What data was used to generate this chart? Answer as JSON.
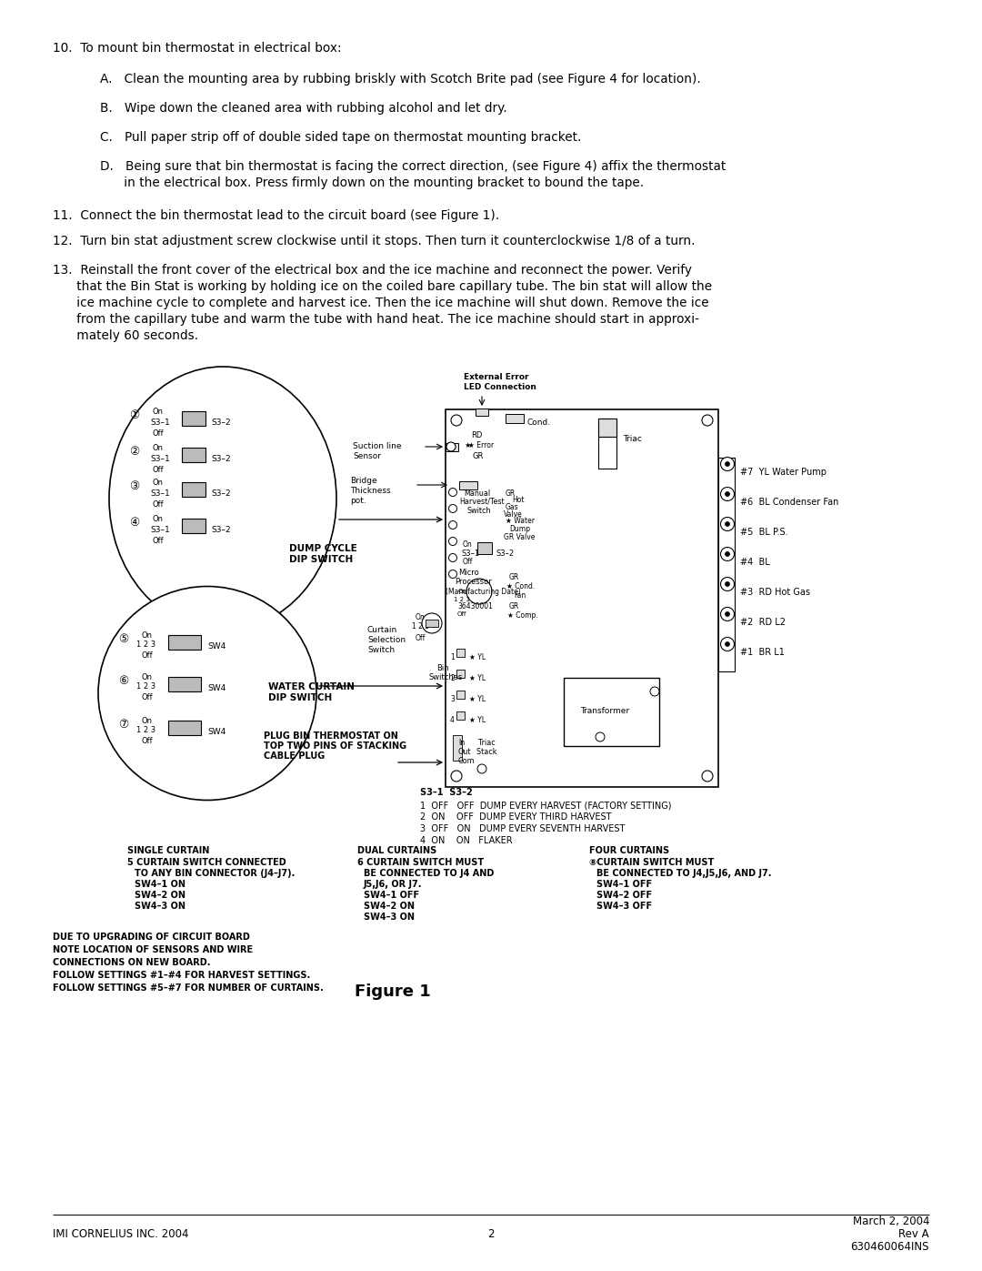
{
  "bg_color": "#ffffff",
  "text_color": "#000000",
  "footer_left": "IMI CORNELIUS INC. 2004",
  "footer_center": "2",
  "footer_right1": "March 2, 2004",
  "footer_right2": "Rev A",
  "footer_right3": "630460064INS",
  "item10": "10.  To mount bin thermostat in electrical box:",
  "item10A": "A.   Clean the mounting area by rubbing briskly with Scotch Brite pad (see Figure 4 for location).",
  "item10B": "B.   Wipe down the cleaned area with rubbing alcohol and let dry.",
  "item10C": "C.   Pull paper strip off of double sided tape on thermostat mounting bracket.",
  "item10D1": "D.   Being sure that bin thermostat is facing the correct direction, (see Figure 4) affix the thermostat",
  "item10D2": "      in the electrical box. Press firmly down on the mounting bracket to bound the tape.",
  "item11": "11.  Connect the bin thermostat lead to the circuit board (see Figure 1).",
  "item12": "12.  Turn bin stat adjustment screw clockwise until it stops. Then turn it counterclockwise 1/8 of a turn.",
  "item13_1": "13.  Reinstall the front cover of the electrical box and the ice machine and reconnect the power. Verify",
  "item13_2": "      that the Bin Stat is working by holding ice on the coiled bare capillary tube. The bin stat will allow the",
  "item13_3": "      ice machine cycle to complete and harvest ice. Then the ice machine will shut down. Remove the ice",
  "item13_4": "      from the capillary tube and warm the tube with hand heat. The ice machine should start in approxi-",
  "item13_5": "      mately 60 seconds.",
  "figure_label": "Figure 1"
}
